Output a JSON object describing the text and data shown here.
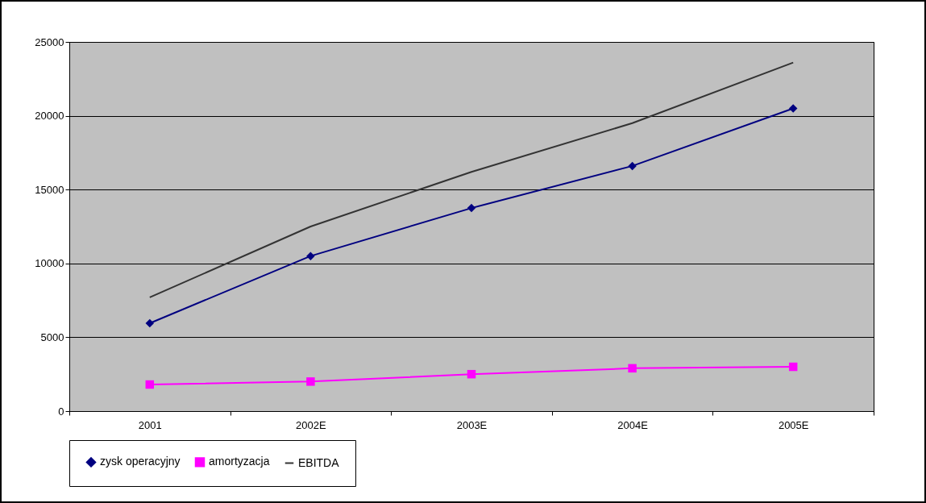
{
  "chart_data": {
    "type": "line",
    "categories": [
      "2001",
      "2002E",
      "2003E",
      "2004E",
      "2005E"
    ],
    "series": [
      {
        "name": "zysk operacyjny",
        "color": "#000080",
        "marker": "diamond",
        "values": [
          5950,
          10500,
          13750,
          16600,
          20500
        ]
      },
      {
        "name": "amortyzacja",
        "color": "#ff00ff",
        "marker": "square",
        "values": [
          1800,
          2000,
          2500,
          2900,
          3000
        ]
      },
      {
        "name": "EBITDA",
        "color": "#333333",
        "marker": "none",
        "values": [
          7700,
          12500,
          16200,
          19500,
          23600
        ]
      }
    ],
    "ylim": [
      0,
      25000
    ],
    "yticks": [
      0,
      5000,
      10000,
      15000,
      20000,
      25000
    ],
    "grid": "y",
    "legend": "bottom"
  }
}
